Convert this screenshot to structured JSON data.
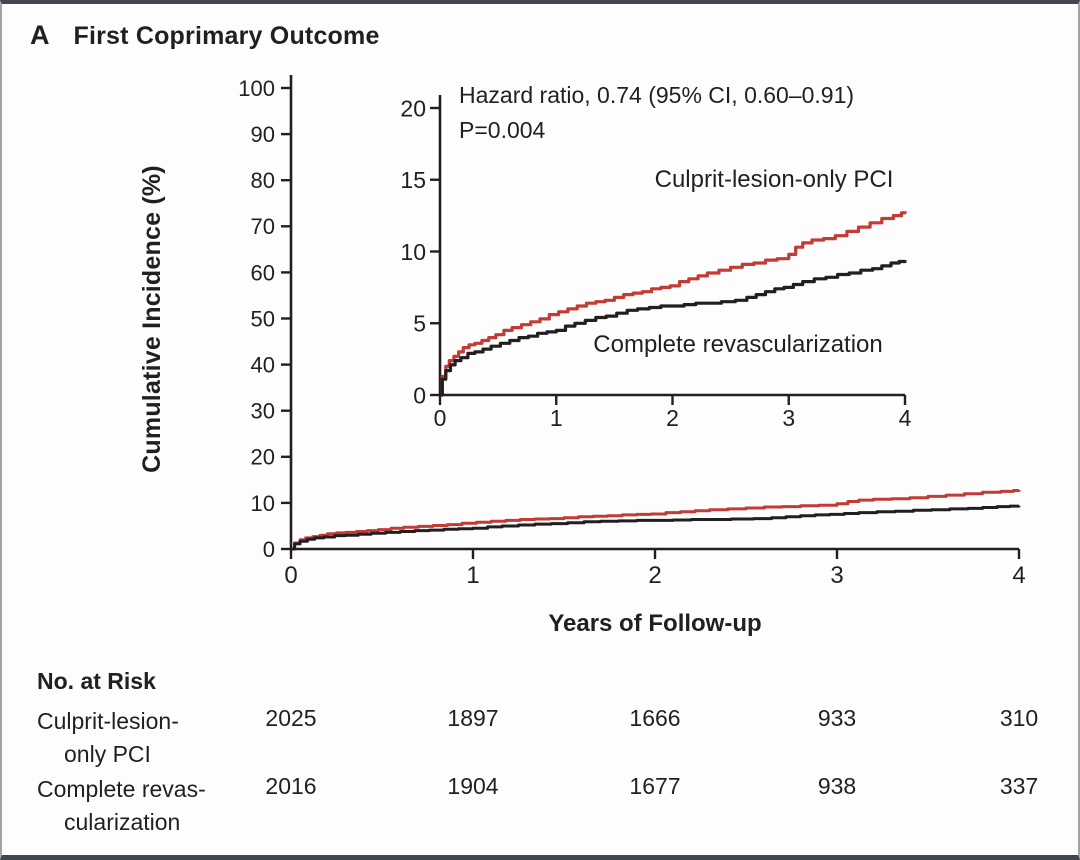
{
  "panel": {
    "label": "A",
    "title": "First Coprimary Outcome"
  },
  "colors": {
    "red": "#c23b35",
    "black": "#231f20",
    "axis": "#231f20",
    "text": "#231f20",
    "frame_dark": "#42464d",
    "frame_side": "#a3a3a3",
    "background": "#fdfdfd"
  },
  "main_plot": {
    "ylabel": "Cumulative Incidence (%)",
    "xlabel": "Years of Follow-up"
  },
  "inset": {
    "hazard_line1": "Hazard ratio, 0.74 (95% CI, 0.60–0.91)",
    "hazard_line2": "P=0.004",
    "label_red": "Culprit-lesion-only PCI",
    "label_black": "Complete revascularization"
  },
  "risk_table": {
    "heading": "No. at Risk",
    "rows": [
      {
        "label_line1": "Culprit-lesion-",
        "label_line2": "only PCI",
        "values": [
          "2025",
          "1897",
          "1666",
          "933",
          "310"
        ]
      },
      {
        "label_line1": "Complete revas-",
        "label_line2": "cularization",
        "values": [
          "2016",
          "1904",
          "1677",
          "938",
          "337"
        ]
      }
    ]
  },
  "chart_data": {
    "type": "line",
    "title": "First Coprimary Outcome",
    "xlabel": "Years of Follow-up",
    "ylabel": "Cumulative Incidence (%)",
    "legend_position": "inline-labels",
    "grid": false,
    "main_axis": {
      "xlim": [
        0,
        4
      ],
      "ylim": [
        0,
        100
      ],
      "xticks": [
        0,
        1,
        2,
        3,
        4
      ],
      "yticks": [
        0,
        10,
        20,
        30,
        40,
        50,
        60,
        70,
        80,
        90,
        100
      ]
    },
    "inset_axis": {
      "xlim": [
        0,
        4
      ],
      "ylim": [
        0,
        20
      ],
      "xticks": [
        0,
        1,
        2,
        3,
        4
      ],
      "yticks": [
        0,
        5,
        10,
        15,
        20
      ]
    },
    "annotations": {
      "hazard_ratio": "Hazard ratio, 0.74 (95% CI, 0.60–0.91)",
      "p_value": "P=0.004"
    },
    "series": [
      {
        "name": "Culprit-lesion-only PCI",
        "color": "#c23b35",
        "x": [
          0,
          0.02,
          0.05,
          0.08,
          0.12,
          0.16,
          0.2,
          0.25,
          0.3,
          0.36,
          0.42,
          0.48,
          0.55,
          0.62,
          0.7,
          0.78,
          0.86,
          0.94,
          1.02,
          1.1,
          1.18,
          1.26,
          1.34,
          1.42,
          1.5,
          1.58,
          1.66,
          1.74,
          1.82,
          1.9,
          1.98,
          2.06,
          2.14,
          2.22,
          2.3,
          2.4,
          2.5,
          2.6,
          2.7,
          2.8,
          2.9,
          3.0,
          3.06,
          3.12,
          3.2,
          3.3,
          3.4,
          3.5,
          3.6,
          3.7,
          3.8,
          3.9,
          3.97,
          4.0
        ],
        "y": [
          0,
          1.3,
          2.0,
          2.4,
          2.7,
          3.0,
          3.3,
          3.5,
          3.6,
          3.8,
          4.0,
          4.2,
          4.5,
          4.7,
          4.9,
          5.1,
          5.3,
          5.6,
          5.8,
          6.0,
          6.2,
          6.4,
          6.5,
          6.6,
          6.8,
          7.0,
          7.1,
          7.2,
          7.4,
          7.5,
          7.6,
          7.9,
          8.1,
          8.3,
          8.5,
          8.7,
          8.9,
          9.1,
          9.2,
          9.4,
          9.5,
          9.8,
          10.3,
          10.6,
          10.8,
          10.9,
          11.1,
          11.4,
          11.7,
          12.0,
          12.3,
          12.5,
          12.7,
          12.8
        ]
      },
      {
        "name": "Complete revascularization",
        "color": "#231f20",
        "x": [
          0,
          0.02,
          0.05,
          0.09,
          0.13,
          0.18,
          0.24,
          0.3,
          0.37,
          0.44,
          0.52,
          0.6,
          0.68,
          0.76,
          0.84,
          0.92,
          1.0,
          1.08,
          1.16,
          1.25,
          1.34,
          1.43,
          1.52,
          1.61,
          1.7,
          1.8,
          1.9,
          2.0,
          2.1,
          2.2,
          2.3,
          2.42,
          2.54,
          2.64,
          2.72,
          2.8,
          2.88,
          2.96,
          3.04,
          3.12,
          3.22,
          3.32,
          3.42,
          3.52,
          3.62,
          3.72,
          3.8,
          3.88,
          3.95,
          4.0
        ],
        "y": [
          0,
          1.1,
          1.7,
          2.1,
          2.4,
          2.6,
          2.9,
          3.0,
          3.2,
          3.4,
          3.6,
          3.8,
          4.0,
          4.1,
          4.3,
          4.4,
          4.5,
          4.8,
          5.0,
          5.2,
          5.4,
          5.5,
          5.7,
          5.9,
          6.0,
          6.1,
          6.2,
          6.2,
          6.3,
          6.4,
          6.4,
          6.5,
          6.6,
          6.8,
          7.0,
          7.2,
          7.4,
          7.5,
          7.7,
          7.9,
          8.1,
          8.2,
          8.4,
          8.5,
          8.7,
          8.8,
          9.0,
          9.2,
          9.3,
          9.4
        ]
      }
    ]
  }
}
